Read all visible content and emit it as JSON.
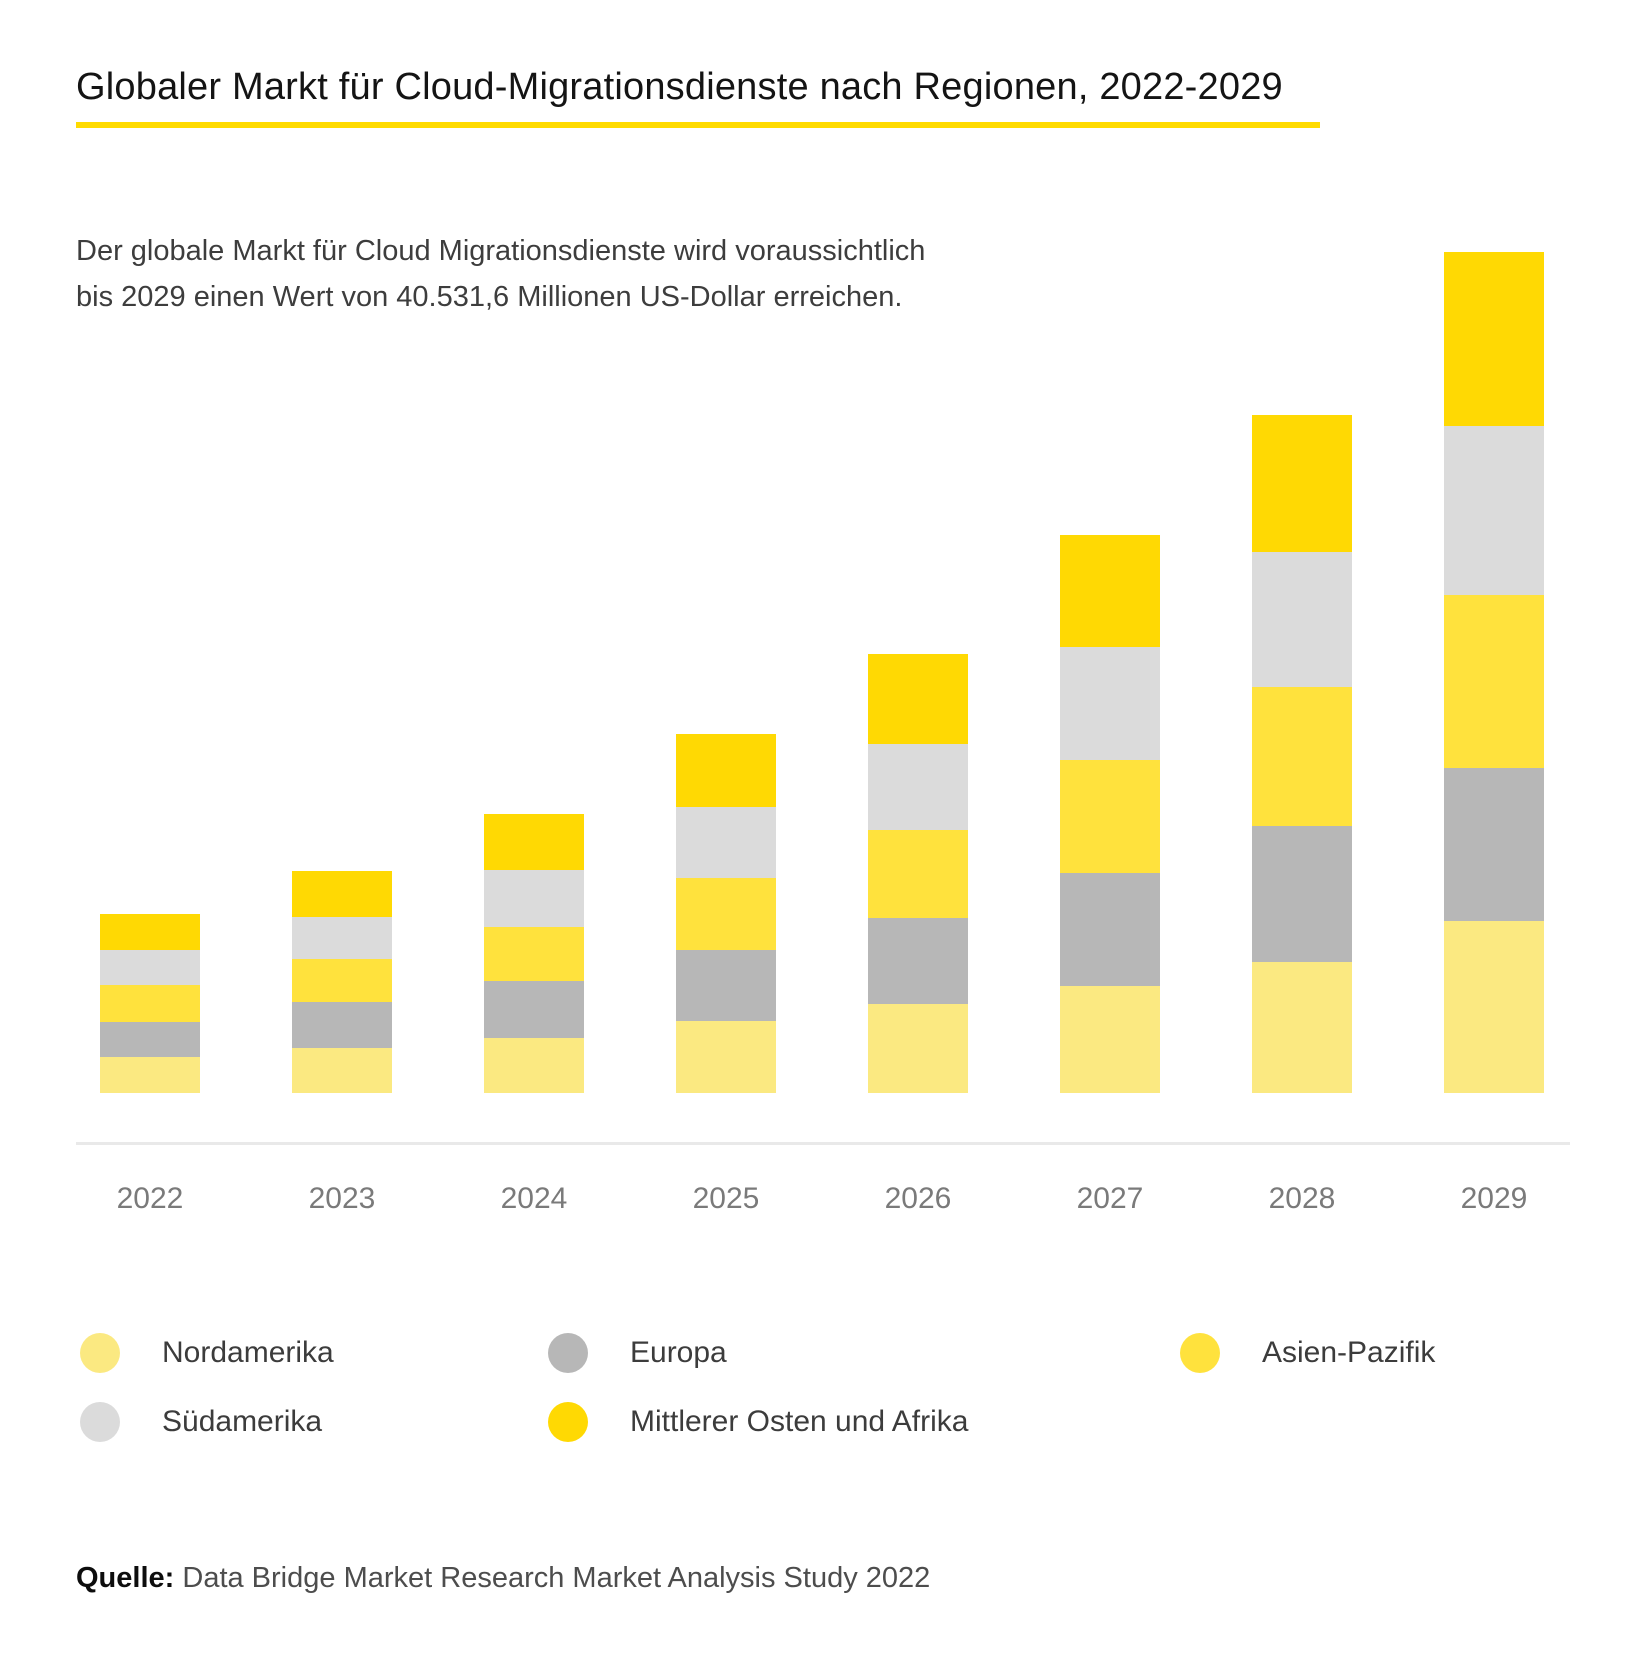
{
  "header": {
    "title": "Globaler Markt für Cloud-Migrationsdienste nach Regionen, 2022-2029",
    "underline_color": "#FFDB00",
    "subtitle_line1": "Der globale Markt für Cloud Migrationsdienste wird voraussichtlich",
    "subtitle_line2": "bis 2029 einen Wert von 40.531,6 Millionen US-Dollar erreichen."
  },
  "chart_data": {
    "type": "bar",
    "stacked": true,
    "title": "Globaler Markt für Cloud-Migrationsdienste nach Regionen, 2022-2029",
    "unit": "Mio. US-Dollar (aus Balkenhöhen geschätzt)",
    "highlight_value_2029_total": "40.531,6",
    "categories": [
      "2022",
      "2023",
      "2024",
      "2025",
      "2026",
      "2027",
      "2028",
      "2029"
    ],
    "stack_order_note": "series listed bottom-to-top",
    "series": [
      {
        "name": "Nordamerika",
        "color": "#FBE981",
        "values": [
          1735,
          2169,
          2650,
          3470,
          4289,
          5156,
          6313,
          8289
        ]
      },
      {
        "name": "Europa",
        "color": "#B7B7B7",
        "values": [
          1687,
          2217,
          2747,
          3421,
          4144,
          5445,
          6554,
          7373
        ]
      },
      {
        "name": "Asien-Pazifik",
        "color": "#FFE23D",
        "values": [
          1783,
          2072,
          2602,
          3470,
          4241,
          5445,
          6698,
          8337
        ]
      },
      {
        "name": "Südamerika",
        "color": "#DBDBDB",
        "values": [
          1687,
          2024,
          2747,
          3421,
          4144,
          5445,
          6506,
          8144
        ]
      },
      {
        "name": "Mittlerer Osten und Afrika",
        "color": "#FFD903",
        "values": [
          1735,
          2217,
          2699,
          3518,
          4337,
          5397,
          6602,
          8389
        ]
      }
    ],
    "totals": [
      8627,
      10699,
      13445,
      17300,
      21155,
      26888,
      32673,
      40532
    ],
    "ylim": [
      0,
      40532
    ],
    "grid": false,
    "axis_labels_shown": "x only",
    "legend_position": "bottom"
  },
  "legend": {
    "rows": [
      [
        0,
        1,
        2
      ],
      [
        3,
        4
      ]
    ]
  },
  "source": {
    "label": "Quelle:",
    "text": " Data Bridge Market Research Market Analysis Study 2022"
  }
}
